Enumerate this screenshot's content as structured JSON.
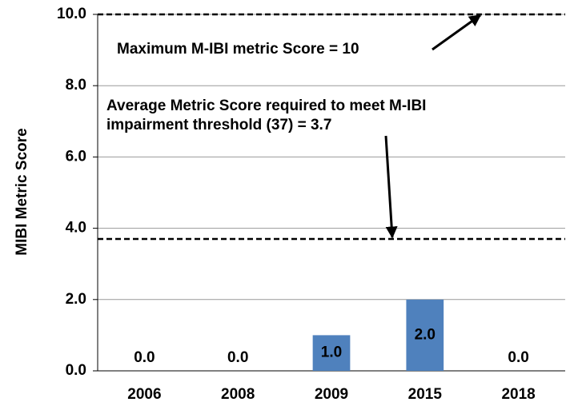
{
  "chart_data": {
    "type": "bar",
    "y_label": "MIBI Metric Score",
    "categories": [
      "2006",
      "2008",
      "2009",
      "2015",
      "2018"
    ],
    "values": [
      0,
      0,
      1,
      2,
      0
    ],
    "value_labels": [
      "0.0",
      "0.0",
      "1.0",
      "2.0",
      "0.0"
    ],
    "color": "#4f81bd",
    "ylim": [
      0,
      10
    ],
    "yticks": [
      {
        "value": 0,
        "label": "0.0"
      },
      {
        "value": 2,
        "label": "2.0"
      },
      {
        "value": 4,
        "label": "4.0"
      },
      {
        "value": 6,
        "label": "6.0"
      },
      {
        "value": 8,
        "label": "8.0"
      },
      {
        "value": 10,
        "label": "10.0"
      }
    ],
    "grid": true,
    "reference_lines": [
      {
        "value": 10
      },
      {
        "value": 3.7
      }
    ],
    "annotations": [
      {
        "lines": [
          "Maximum M-IBI metric Score = 10"
        ]
      },
      {
        "lines": [
          "Average Metric Score required to meet M-IBI",
          "impairment threshold (37) = 3.7"
        ]
      }
    ]
  }
}
